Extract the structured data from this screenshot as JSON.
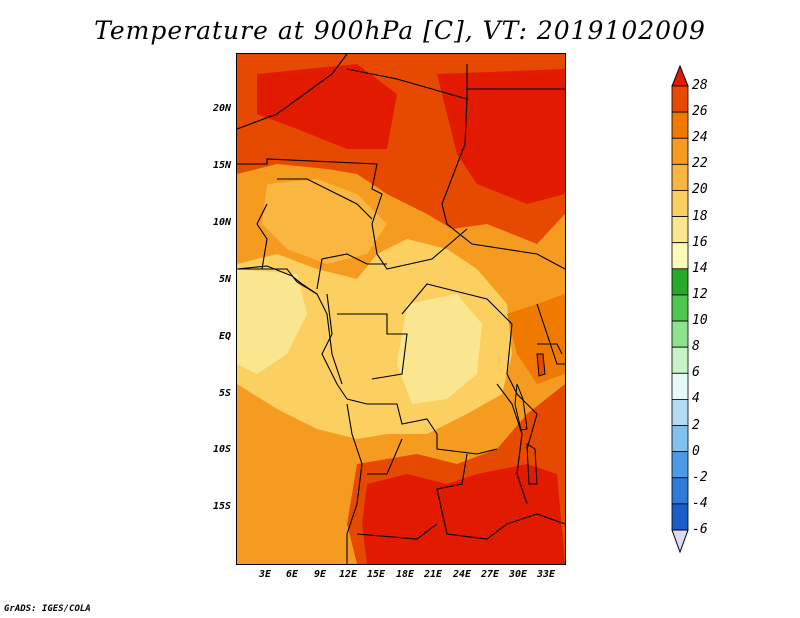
{
  "title": "Temperature at 900hPa [C], VT: 2019102009",
  "credit": "GrADS: IGES/COLA",
  "lat_ticks": [
    "20N",
    "15N",
    "10N",
    "5N",
    "EQ",
    "5S",
    "10S",
    "15S"
  ],
  "lon_ticks": [
    "3E",
    "6E",
    "9E",
    "12E",
    "15E",
    "18E",
    "21E",
    "24E",
    "27E",
    "30E",
    "33E"
  ],
  "colorbar": {
    "labels": [
      "28",
      "26",
      "24",
      "22",
      "20",
      "18",
      "16",
      "14",
      "12",
      "10",
      "8",
      "6",
      "4",
      "2",
      "0",
      "-2",
      "-4",
      "-6"
    ],
    "colors": [
      "#e11a00",
      "#e64a00",
      "#f07a00",
      "#f59c20",
      "#f9b640",
      "#fbd060",
      "#fbe690",
      "#fdfab8",
      "#2aa82a",
      "#4fc74f",
      "#8ee28e",
      "#c8f2c8",
      "#e8faf6",
      "#b4dcf4",
      "#82c0ee",
      "#4c9be6",
      "#2e7cd8",
      "#1a5ec8",
      "#103ea8",
      "#0a1f7a",
      "#dcdcf5"
    ],
    "top_arrow_color": "#e11a00",
    "bottom_arrow_color": "#dcdcf5"
  }
}
